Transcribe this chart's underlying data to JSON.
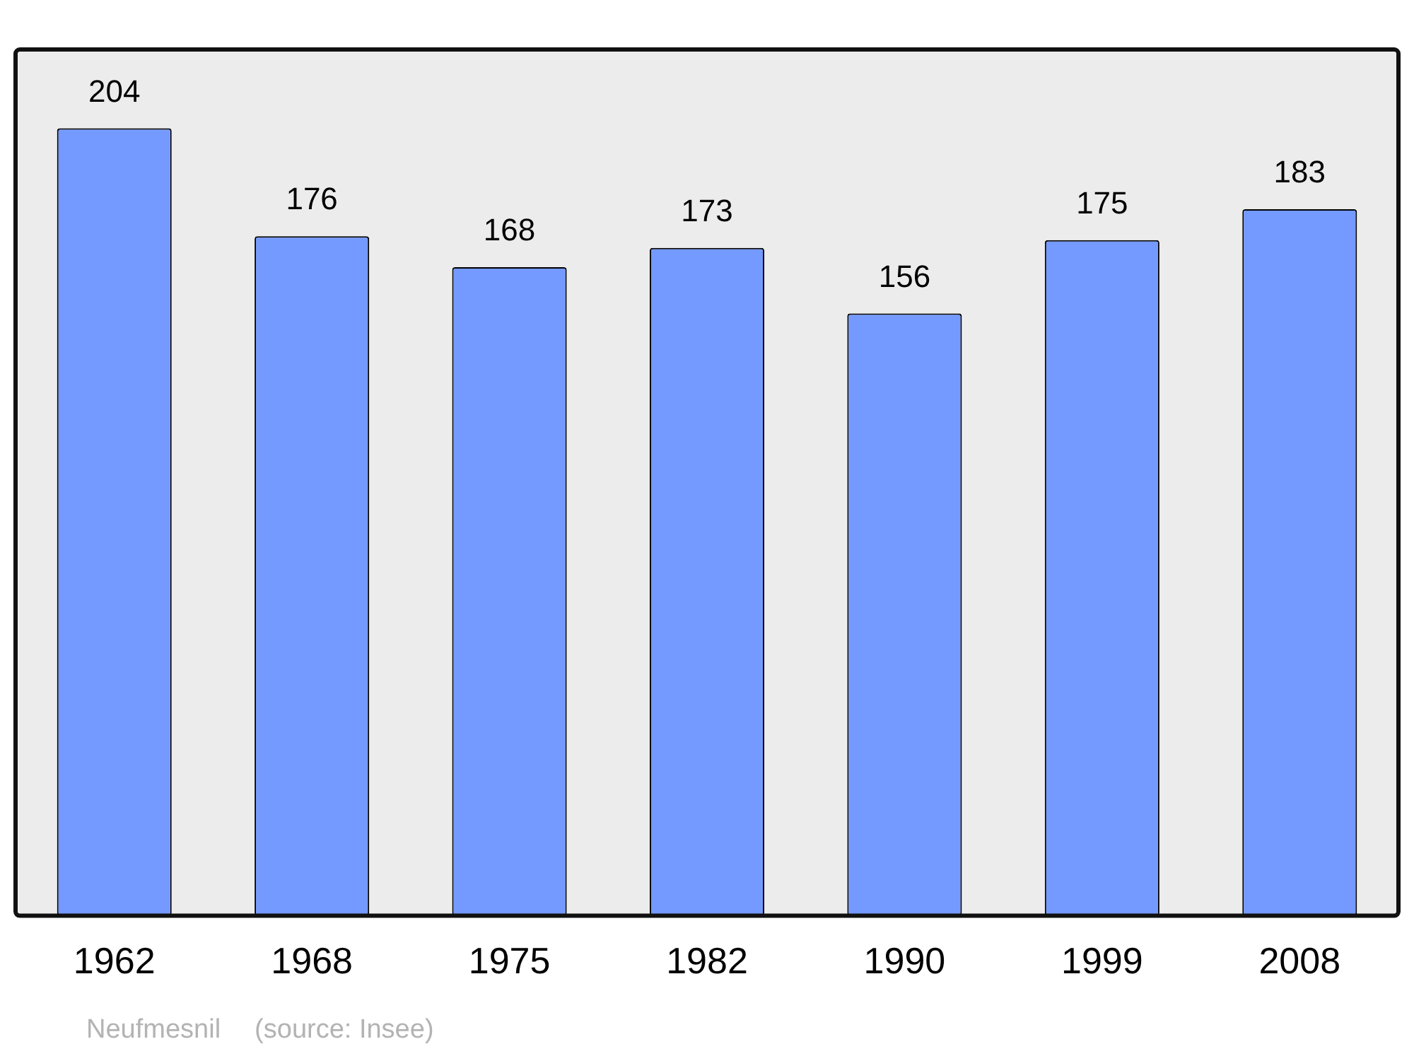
{
  "chart_data": {
    "type": "bar",
    "categories": [
      "1962",
      "1968",
      "1975",
      "1982",
      "1990",
      "1999",
      "2008"
    ],
    "values": [
      204,
      176,
      168,
      173,
      156,
      175,
      183
    ],
    "color": "#7499ff",
    "data_labels": true,
    "grid": false,
    "legend": false,
    "annotations": [
      "Neufmesnil",
      "(source: Insee)"
    ]
  }
}
